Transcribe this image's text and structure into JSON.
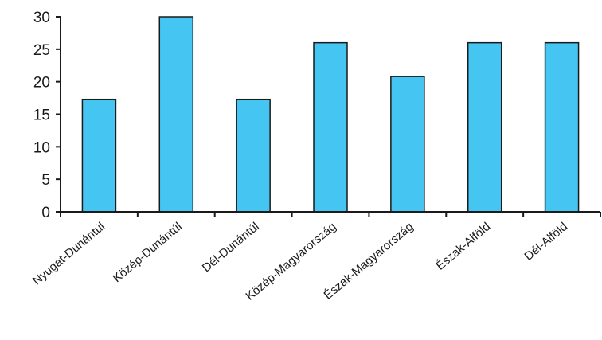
{
  "chart_data": {
    "type": "bar",
    "title": "",
    "xlabel": "",
    "ylabel": "",
    "categories": [
      "Nyugat-Dunántúl",
      "Közép-Dunántúl",
      "Dél-Dunántúl",
      "Közép-Magyarország",
      "Észak-Magyarország",
      "Észak-Alföld",
      "Dél-Alföld"
    ],
    "values": [
      17.3,
      30,
      17.3,
      26,
      20.8,
      26,
      26
    ],
    "ylim": [
      0,
      30
    ],
    "yticks": [
      0,
      5,
      10,
      15,
      20,
      25,
      30
    ],
    "grid": false,
    "legend": "none",
    "colors": {
      "bar_fill": "#45c6f2",
      "bar_stroke": "#1a1a1a",
      "axis": "#1a1a1a"
    }
  }
}
